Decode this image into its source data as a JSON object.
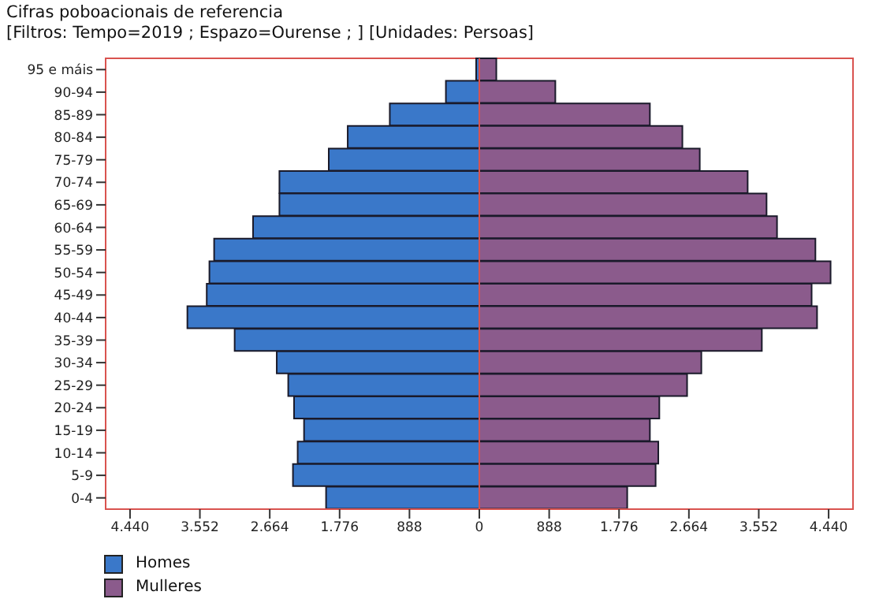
{
  "chart_data": {
    "type": "bar",
    "orientation": "horizontal",
    "stacked": true,
    "title": "Cifras poboacionais de referencia",
    "subtitle": "[Filtros: Tempo=2019 ; Espazo=Ourense ; ] [Unidades: Persoas]",
    "categories": [
      "95 e máis",
      "90-94",
      "85-89",
      "80-84",
      "75-79",
      "70-74",
      "65-69",
      "60-64",
      "55-59",
      "50-54",
      "45-49",
      "40-44",
      "35-39",
      "30-34",
      "25-29",
      "20-24",
      "15-19",
      "10-14",
      "5-9",
      "0-4"
    ],
    "series": [
      {
        "name": "Homes",
        "color": "#3a78c9",
        "values": [
          -40,
          -425,
          -1138,
          -1673,
          -1914,
          -2541,
          -2541,
          -2876,
          -3371,
          -3431,
          -3465,
          -3711,
          -3110,
          -2575,
          -2429,
          -2355,
          -2228,
          -2309,
          -2369,
          -1948
        ]
      },
      {
        "name": "Mulleres",
        "color": "#8b5b8c",
        "values": [
          216,
          966,
          2168,
          2581,
          2802,
          3411,
          3651,
          3784,
          4272,
          4465,
          4224,
          4293,
          3591,
          2822,
          2641,
          2288,
          2168,
          2275,
          2241,
          1880
        ]
      }
    ],
    "xlim": [
      -4750,
      4750
    ],
    "xticks": [
      {
        "value": -4440,
        "label": "4.440"
      },
      {
        "value": -3552,
        "label": "3.552"
      },
      {
        "value": -2664,
        "label": "2.664"
      },
      {
        "value": -1776,
        "label": "1.776"
      },
      {
        "value": -888,
        "label": "888"
      },
      0,
      {
        "value": 888,
        "label": "888"
      },
      {
        "value": 1776,
        "label": "1.776"
      },
      {
        "value": 2664,
        "label": "2.664"
      },
      {
        "value": 3552,
        "label": "3.552"
      },
      {
        "value": 4440,
        "label": "4.440"
      }
    ],
    "ref_lines": [
      {
        "axis": "x",
        "value": 0,
        "color": "#d9534f"
      }
    ],
    "legend": "bottom left"
  }
}
